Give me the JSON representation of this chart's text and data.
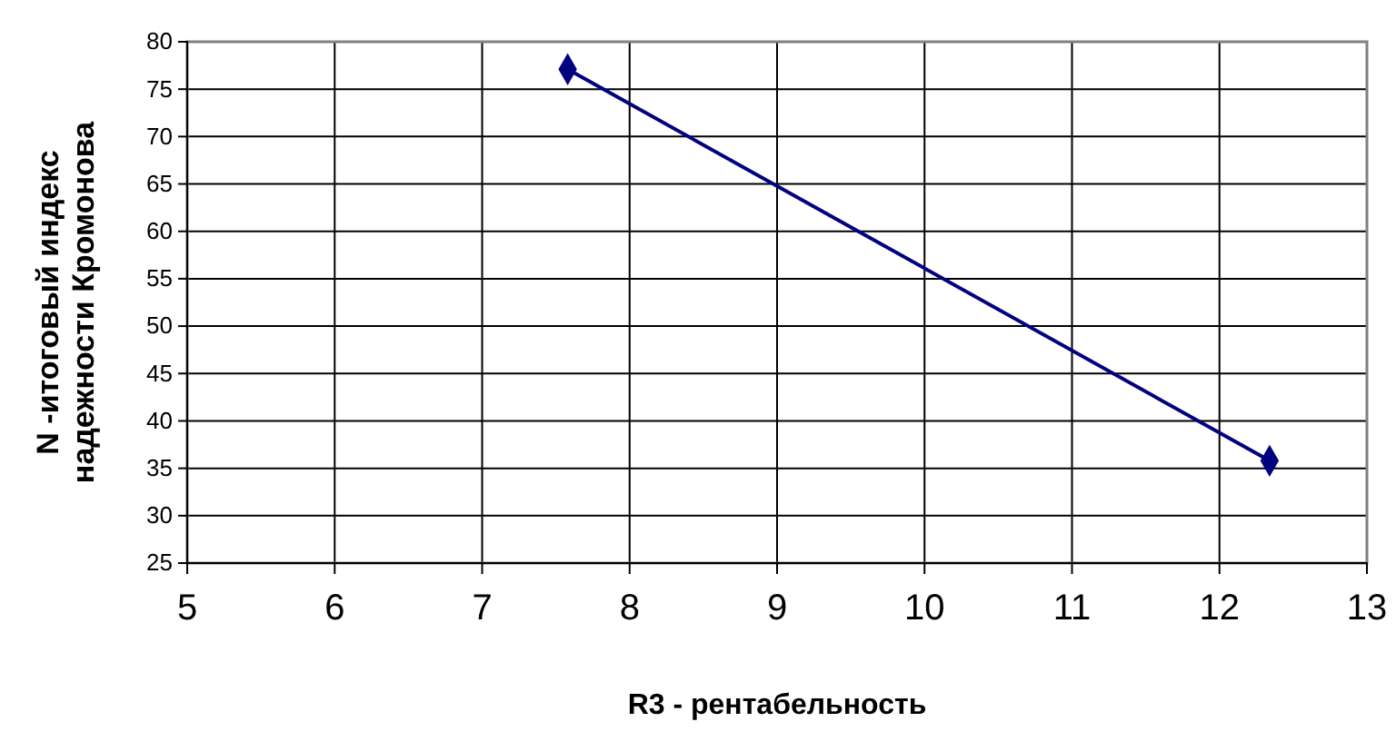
{
  "chart_data": {
    "type": "line",
    "xlabel": "R3 - рентабельность",
    "ylabel": "N -итоговый индекс надежности Кромонова",
    "x": [
      7.58,
      12.34
    ],
    "series": [
      {
        "color": "#000080",
        "values": [
          77.1,
          35.8
        ]
      }
    ],
    "xlim": [
      5,
      13
    ],
    "xticks": [
      5,
      6,
      7,
      8,
      9,
      10,
      11,
      12,
      13
    ],
    "ylim": [
      25,
      80
    ],
    "yticks": [
      25,
      30,
      35,
      40,
      45,
      50,
      55,
      60,
      65,
      70,
      75,
      80
    ],
    "grid": true,
    "marker": "diamond",
    "line_style": "solid"
  }
}
